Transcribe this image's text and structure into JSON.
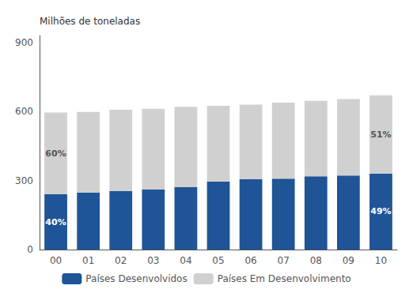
{
  "chart_data": {
    "type": "bar",
    "stacked": true,
    "categories": [
      "00",
      "01",
      "02",
      "03",
      "04",
      "05",
      "06",
      "07",
      "08",
      "09",
      "10"
    ],
    "series": [
      {
        "name": "Países Desenvolvidos",
        "color": "#1F5496",
        "values": [
          240,
          248,
          255,
          262,
          272,
          295,
          305,
          308,
          318,
          322,
          330
        ]
      },
      {
        "name": "Países Em Desenvolvimento",
        "color": "#D0D0D0",
        "values": [
          355,
          350,
          352,
          350,
          348,
          330,
          325,
          330,
          328,
          332,
          340
        ]
      }
    ],
    "ylabel": "Milhões de toneladas",
    "ylim": [
      0,
      930
    ],
    "yticks": [
      0,
      300,
      600,
      900
    ],
    "grid": false,
    "legend": "bottom",
    "annotations": [
      {
        "text": "40%",
        "x": "00",
        "series": "Países Desenvolvidos"
      },
      {
        "text": "60%",
        "x": "00",
        "series": "Países Em Desenvolvimento"
      },
      {
        "text": "49%",
        "x": "10",
        "series": "Países Desenvolvidos"
      },
      {
        "text": "51%",
        "x": "10",
        "series": "Países Em Desenvolvimento"
      }
    ]
  }
}
